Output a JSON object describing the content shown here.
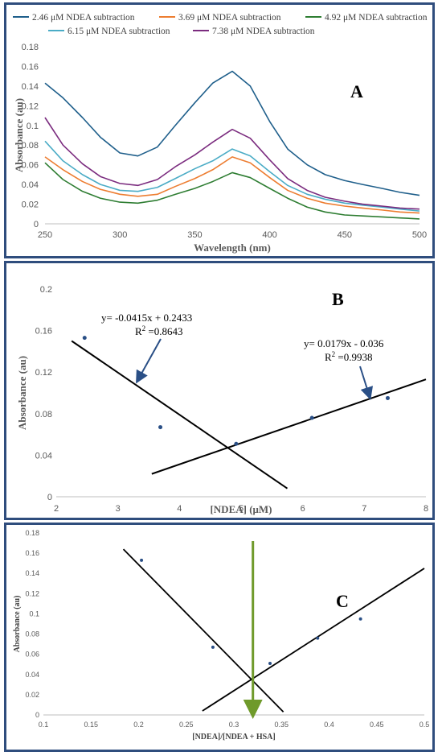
{
  "chart_data": [
    {
      "type": "line",
      "panel_label": "A",
      "xlabel": "Wavelength (nm)",
      "ylabel": "Absorbance (au)",
      "xlim": [
        250,
        500
      ],
      "ylim": [
        0,
        0.18
      ],
      "x_ticks": [
        250,
        300,
        350,
        400,
        450,
        500
      ],
      "y_ticks": [
        0,
        0.02,
        0.04,
        0.06,
        0.08,
        0.1,
        0.12,
        0.14,
        0.16,
        0.18
      ],
      "legend_position": "top",
      "grid": false,
      "x": [
        250,
        262,
        275,
        287,
        300,
        312,
        325,
        337,
        350,
        362,
        375,
        387,
        400,
        412,
        425,
        437,
        450,
        462,
        475,
        487,
        500
      ],
      "series": [
        {
          "name": "2.46 μM NDEA subtraction",
          "color": "#1f5f8b",
          "values": [
            0.143,
            0.128,
            0.108,
            0.088,
            0.072,
            0.069,
            0.078,
            0.1,
            0.123,
            0.143,
            0.155,
            0.14,
            0.104,
            0.076,
            0.06,
            0.05,
            0.044,
            0.04,
            0.036,
            0.032,
            0.029
          ]
        },
        {
          "name": "3.69 μM NDEA subtraction",
          "color": "#ed7d31",
          "values": [
            0.068,
            0.055,
            0.043,
            0.035,
            0.03,
            0.028,
            0.03,
            0.038,
            0.046,
            0.055,
            0.068,
            0.062,
            0.047,
            0.034,
            0.026,
            0.021,
            0.018,
            0.016,
            0.014,
            0.012,
            0.011
          ]
        },
        {
          "name": "4.92 μM NDEA subtraction",
          "color": "#2e7d32",
          "values": [
            0.062,
            0.045,
            0.033,
            0.026,
            0.022,
            0.021,
            0.024,
            0.03,
            0.036,
            0.043,
            0.052,
            0.047,
            0.036,
            0.026,
            0.017,
            0.012,
            0.009,
            0.008,
            0.007,
            0.006,
            0.005
          ]
        },
        {
          "name": "6.15 μM NDEA subtraction",
          "color": "#4bacc6",
          "values": [
            0.084,
            0.064,
            0.05,
            0.04,
            0.034,
            0.033,
            0.037,
            0.046,
            0.056,
            0.064,
            0.076,
            0.069,
            0.053,
            0.039,
            0.03,
            0.025,
            0.021,
            0.019,
            0.017,
            0.015,
            0.013
          ]
        },
        {
          "name": "7.38 μM NDEA subtraction",
          "color": "#7b2c7f",
          "values": [
            0.108,
            0.08,
            0.061,
            0.048,
            0.041,
            0.039,
            0.045,
            0.058,
            0.07,
            0.083,
            0.096,
            0.087,
            0.065,
            0.046,
            0.034,
            0.027,
            0.023,
            0.02,
            0.018,
            0.016,
            0.015
          ]
        }
      ]
    },
    {
      "type": "scatter",
      "panel_label": "B",
      "xlabel": "[NDEA] (μM)",
      "ylabel": "Absorbance (au)",
      "xlim": [
        2,
        8
      ],
      "ylim": [
        0,
        0.2
      ],
      "x_ticks": [
        2,
        3,
        4,
        5,
        6,
        7,
        8
      ],
      "y_ticks": [
        0,
        0.04,
        0.08,
        0.12,
        0.16,
        0.2
      ],
      "grid": false,
      "points": [
        {
          "x": 2.46,
          "y": 0.153
        },
        {
          "x": 3.69,
          "y": 0.067
        },
        {
          "x": 4.92,
          "y": 0.051
        },
        {
          "x": 6.15,
          "y": 0.076
        },
        {
          "x": 7.38,
          "y": 0.095
        }
      ],
      "fit_lines": [
        {
          "x": [
            2.25,
            5.75
          ],
          "y": [
            0.15,
            0.008
          ]
        },
        {
          "x": [
            3.55,
            8.0
          ],
          "y": [
            0.022,
            0.113
          ]
        }
      ],
      "annotations": [
        {
          "eq": "y= -0.0415x  + 0.2433",
          "r2_prefix": "R",
          "r2_sup": "2",
          "r2_value": " =0.8643"
        },
        {
          "eq": "y= 0.0179x  - 0.036",
          "r2_prefix": "R",
          "r2_sup": "2",
          "r2_value": " =0.9938"
        }
      ]
    },
    {
      "type": "scatter",
      "panel_label": "C",
      "xlabel": "[NDEA]/[NDEA + HSA]",
      "ylabel": "Absorbance (au)",
      "xlim": [
        0.1,
        0.5
      ],
      "ylim": [
        0,
        0.18
      ],
      "x_ticks": [
        "0.1",
        "0.15",
        "0.2",
        "0.25",
        "0.3",
        "0.35",
        "0.4",
        "0.45",
        "0.5"
      ],
      "y_ticks": [
        "0",
        "0.02",
        "0.04",
        "0.06",
        "0.08",
        "0.1",
        "0.12",
        "0.14",
        "0.16",
        "0.18"
      ],
      "grid": false,
      "points": [
        {
          "x": 0.203,
          "y": 0.153
        },
        {
          "x": 0.278,
          "y": 0.067
        },
        {
          "x": 0.338,
          "y": 0.051
        },
        {
          "x": 0.388,
          "y": 0.076
        },
        {
          "x": 0.433,
          "y": 0.095
        }
      ],
      "fit_lines": [
        {
          "x": [
            0.184,
            0.352
          ],
          "y": [
            0.164,
            0.003
          ]
        },
        {
          "x": [
            0.267,
            0.5
          ],
          "y": [
            0.004,
            0.145
          ]
        }
      ],
      "intersection_arrow": {
        "x": 0.32,
        "y_from": 0.172,
        "y_to": 0.0,
        "color": "#6f9a2b"
      }
    }
  ]
}
